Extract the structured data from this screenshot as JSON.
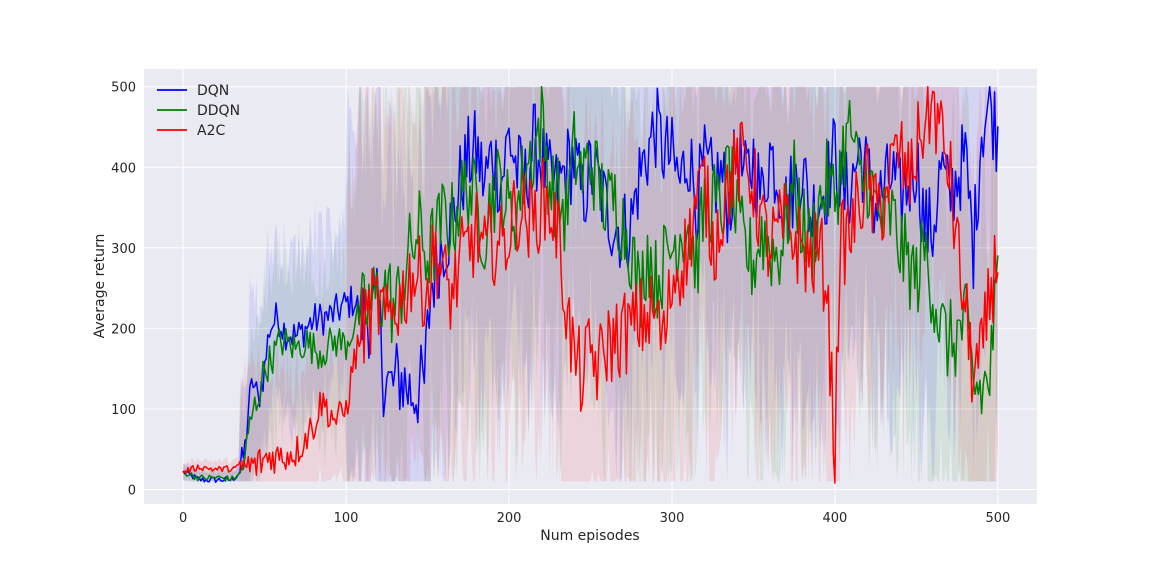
{
  "chart_data": {
    "type": "line",
    "title": "",
    "xlabel": "Num episodes",
    "ylabel": "Average return",
    "xlim": [
      -24,
      524
    ],
    "ylim": [
      -18,
      522
    ],
    "xticks": [
      0,
      100,
      200,
      300,
      400,
      500
    ],
    "yticks": [
      0,
      100,
      200,
      300,
      400,
      500
    ],
    "grid": true,
    "legend_position": "top-left",
    "style": "seaborn-darkgrid",
    "shaded_bands": "mean ± std range per episode, clipped to [10, 500]",
    "series": [
      {
        "name": "DQN",
        "color": "#0000ff",
        "anchors": [
          [
            0,
            22
          ],
          [
            10,
            12
          ],
          [
            20,
            12
          ],
          [
            30,
            12
          ],
          [
            35,
            22
          ],
          [
            38,
            50
          ],
          [
            40,
            100
          ],
          [
            43,
            135
          ],
          [
            46,
            110
          ],
          [
            50,
            150
          ],
          [
            53,
            200
          ],
          [
            58,
            215
          ],
          [
            63,
            195
          ],
          [
            70,
            190
          ],
          [
            80,
            210
          ],
          [
            90,
            215
          ],
          [
            100,
            230
          ],
          [
            105,
            235
          ],
          [
            110,
            215
          ],
          [
            120,
            220
          ],
          [
            123,
            145
          ],
          [
            127,
            125
          ],
          [
            133,
            140
          ],
          [
            140,
            120
          ],
          [
            148,
            130
          ],
          [
            152,
            250
          ],
          [
            158,
            300
          ],
          [
            165,
            330
          ],
          [
            170,
            380
          ],
          [
            175,
            410
          ],
          [
            180,
            420
          ],
          [
            185,
            380
          ],
          [
            190,
            420
          ],
          [
            195,
            380
          ],
          [
            200,
            440
          ],
          [
            205,
            395
          ],
          [
            210,
            380
          ],
          [
            215,
            430
          ],
          [
            220,
            410
          ],
          [
            225,
            380
          ],
          [
            230,
            370
          ],
          [
            235,
            400
          ],
          [
            240,
            410
          ],
          [
            245,
            360
          ],
          [
            250,
            395
          ],
          [
            255,
            380
          ],
          [
            260,
            345
          ],
          [
            265,
            330
          ],
          [
            270,
            320
          ],
          [
            275,
            330
          ],
          [
            280,
            390
          ],
          [
            285,
            420
          ],
          [
            290,
            450
          ],
          [
            295,
            420
          ],
          [
            300,
            410
          ],
          [
            305,
            380
          ],
          [
            310,
            420
          ],
          [
            315,
            360
          ],
          [
            320,
            400
          ],
          [
            325,
            380
          ],
          [
            330,
            390
          ],
          [
            335,
            350
          ],
          [
            340,
            420
          ],
          [
            345,
            380
          ],
          [
            350,
            410
          ],
          [
            355,
            360
          ],
          [
            360,
            420
          ],
          [
            365,
            390
          ],
          [
            370,
            350
          ],
          [
            375,
            380
          ],
          [
            380,
            400
          ],
          [
            385,
            340
          ],
          [
            390,
            360
          ],
          [
            395,
            380
          ],
          [
            400,
            420
          ],
          [
            405,
            360
          ],
          [
            410,
            380
          ],
          [
            415,
            420
          ],
          [
            420,
            390
          ],
          [
            425,
            350
          ],
          [
            430,
            370
          ],
          [
            435,
            390
          ],
          [
            440,
            360
          ],
          [
            445,
            380
          ],
          [
            450,
            410
          ],
          [
            455,
            330
          ],
          [
            460,
            320
          ],
          [
            465,
            400
          ],
          [
            470,
            360
          ],
          [
            475,
            390
          ],
          [
            480,
            410
          ],
          [
            485,
            300
          ],
          [
            490,
            450
          ],
          [
            495,
            480
          ],
          [
            500,
            440
          ]
        ]
      },
      {
        "name": "DDQN",
        "color": "#008000",
        "anchors": [
          [
            0,
            22
          ],
          [
            10,
            14
          ],
          [
            20,
            15
          ],
          [
            30,
            13
          ],
          [
            35,
            18
          ],
          [
            38,
            40
          ],
          [
            42,
            90
          ],
          [
            46,
            115
          ],
          [
            50,
            150
          ],
          [
            55,
            165
          ],
          [
            60,
            185
          ],
          [
            65,
            180
          ],
          [
            70,
            175
          ],
          [
            75,
            185
          ],
          [
            80,
            175
          ],
          [
            85,
            170
          ],
          [
            90,
            180
          ],
          [
            95,
            185
          ],
          [
            100,
            180
          ],
          [
            105,
            205
          ],
          [
            110,
            220
          ],
          [
            115,
            230
          ],
          [
            120,
            240
          ],
          [
            125,
            250
          ],
          [
            130,
            220
          ],
          [
            135,
            260
          ],
          [
            140,
            300
          ],
          [
            145,
            320
          ],
          [
            150,
            290
          ],
          [
            155,
            310
          ],
          [
            160,
            340
          ],
          [
            165,
            330
          ],
          [
            170,
            360
          ],
          [
            175,
            380
          ],
          [
            180,
            350
          ],
          [
            185,
            320
          ],
          [
            190,
            370
          ],
          [
            195,
            380
          ],
          [
            200,
            340
          ],
          [
            205,
            350
          ],
          [
            210,
            400
          ],
          [
            215,
            420
          ],
          [
            220,
            460
          ],
          [
            225,
            380
          ],
          [
            230,
            360
          ],
          [
            235,
            340
          ],
          [
            240,
            420
          ],
          [
            245,
            390
          ],
          [
            250,
            410
          ],
          [
            255,
            380
          ],
          [
            260,
            350
          ],
          [
            265,
            360
          ],
          [
            270,
            330
          ],
          [
            275,
            300
          ],
          [
            280,
            240
          ],
          [
            285,
            300
          ],
          [
            290,
            260
          ],
          [
            295,
            280
          ],
          [
            300,
            300
          ],
          [
            305,
            320
          ],
          [
            310,
            330
          ],
          [
            315,
            280
          ],
          [
            320,
            350
          ],
          [
            325,
            360
          ],
          [
            330,
            340
          ],
          [
            335,
            400
          ],
          [
            340,
            330
          ],
          [
            345,
            300
          ],
          [
            350,
            280
          ],
          [
            355,
            320
          ],
          [
            360,
            300
          ],
          [
            365,
            290
          ],
          [
            370,
            330
          ],
          [
            375,
            380
          ],
          [
            380,
            330
          ],
          [
            385,
            300
          ],
          [
            390,
            350
          ],
          [
            395,
            380
          ],
          [
            400,
            360
          ],
          [
            405,
            420
          ],
          [
            410,
            450
          ],
          [
            415,
            380
          ],
          [
            420,
            390
          ],
          [
            425,
            350
          ],
          [
            430,
            330
          ],
          [
            435,
            340
          ],
          [
            440,
            300
          ],
          [
            445,
            280
          ],
          [
            450,
            260
          ],
          [
            455,
            300
          ],
          [
            460,
            250
          ],
          [
            465,
            200
          ],
          [
            470,
            180
          ],
          [
            475,
            190
          ],
          [
            480,
            210
          ],
          [
            485,
            130
          ],
          [
            490,
            120
          ],
          [
            495,
            140
          ],
          [
            500,
            258
          ]
        ]
      },
      {
        "name": "A2C",
        "color": "#ff0000",
        "anchors": [
          [
            0,
            22
          ],
          [
            10,
            28
          ],
          [
            20,
            25
          ],
          [
            30,
            26
          ],
          [
            35,
            28
          ],
          [
            40,
            28
          ],
          [
            45,
            30
          ],
          [
            50,
            38
          ],
          [
            55,
            42
          ],
          [
            60,
            40
          ],
          [
            65,
            45
          ],
          [
            70,
            48
          ],
          [
            75,
            65
          ],
          [
            80,
            80
          ],
          [
            85,
            110
          ],
          [
            90,
            95
          ],
          [
            95,
            85
          ],
          [
            100,
            100
          ],
          [
            105,
            160
          ],
          [
            110,
            200
          ],
          [
            115,
            220
          ],
          [
            120,
            230
          ],
          [
            125,
            200
          ],
          [
            130,
            230
          ],
          [
            135,
            240
          ],
          [
            140,
            270
          ],
          [
            145,
            260
          ],
          [
            150,
            250
          ],
          [
            155,
            300
          ],
          [
            160,
            260
          ],
          [
            165,
            240
          ],
          [
            170,
            280
          ],
          [
            175,
            300
          ],
          [
            180,
            320
          ],
          [
            185,
            290
          ],
          [
            190,
            310
          ],
          [
            195,
            300
          ],
          [
            200,
            320
          ],
          [
            205,
            350
          ],
          [
            210,
            340
          ],
          [
            215,
            330
          ],
          [
            220,
            360
          ],
          [
            225,
            350
          ],
          [
            230,
            320
          ],
          [
            235,
            230
          ],
          [
            240,
            160
          ],
          [
            245,
            140
          ],
          [
            250,
            170
          ],
          [
            255,
            150
          ],
          [
            260,
            180
          ],
          [
            265,
            185
          ],
          [
            270,
            195
          ],
          [
            275,
            200
          ],
          [
            280,
            210
          ],
          [
            285,
            215
          ],
          [
            290,
            220
          ],
          [
            295,
            180
          ],
          [
            300,
            260
          ],
          [
            305,
            280
          ],
          [
            310,
            300
          ],
          [
            315,
            360
          ],
          [
            320,
            380
          ],
          [
            325,
            300
          ],
          [
            330,
            340
          ],
          [
            335,
            380
          ],
          [
            340,
            400
          ],
          [
            345,
            410
          ],
          [
            350,
            380
          ],
          [
            355,
            330
          ],
          [
            360,
            300
          ],
          [
            365,
            320
          ],
          [
            370,
            330
          ],
          [
            375,
            310
          ],
          [
            380,
            300
          ],
          [
            385,
            280
          ],
          [
            390,
            300
          ],
          [
            395,
            260
          ],
          [
            398,
            120
          ],
          [
            400,
            50
          ],
          [
            403,
            300
          ],
          [
            410,
            320
          ],
          [
            415,
            360
          ],
          [
            420,
            380
          ],
          [
            425,
            340
          ],
          [
            430,
            360
          ],
          [
            435,
            400
          ],
          [
            440,
            420
          ],
          [
            445,
            380
          ],
          [
            450,
            420
          ],
          [
            455,
            460
          ],
          [
            460,
            480
          ],
          [
            465,
            440
          ],
          [
            470,
            400
          ],
          [
            475,
            300
          ],
          [
            480,
            220
          ],
          [
            485,
            140
          ],
          [
            490,
            160
          ],
          [
            495,
            240
          ],
          [
            500,
            295
          ]
        ]
      }
    ]
  }
}
